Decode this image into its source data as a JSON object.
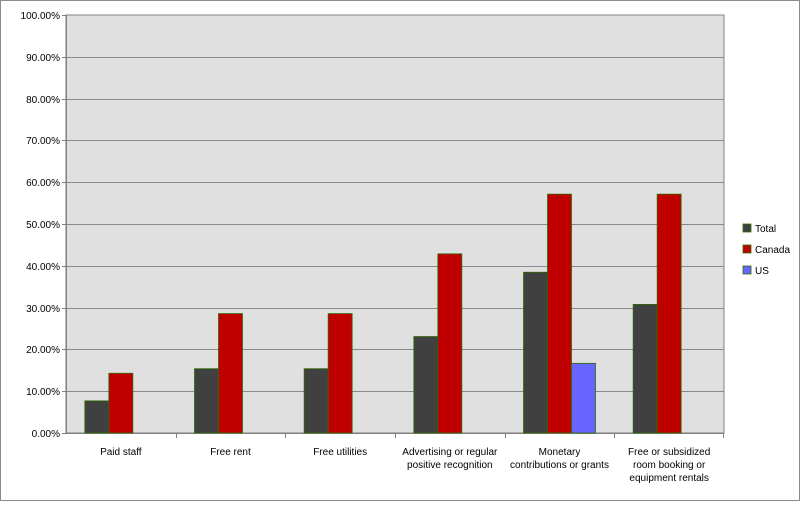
{
  "chart_data": {
    "type": "bar",
    "title": "",
    "xlabel": "",
    "ylabel": "",
    "categories": [
      [
        "Paid staff"
      ],
      [
        "Free rent"
      ],
      [
        "Free utilities"
      ],
      [
        "Advertising or regular",
        "positive recognition"
      ],
      [
        "Monetary",
        "contributions or grants"
      ],
      [
        "Free or subsidized",
        "room booking or",
        "equipment rentals"
      ]
    ],
    "series": [
      {
        "name": "Total",
        "color": "#404040",
        "values": [
          7.69,
          15.38,
          15.38,
          23.08,
          38.46,
          30.77
        ]
      },
      {
        "name": "Canada",
        "color": "#c00000",
        "values": [
          14.29,
          28.57,
          28.57,
          42.86,
          57.14,
          57.14
        ]
      },
      {
        "name": "US",
        "color": "#6666ff",
        "values": [
          0,
          0,
          0,
          0,
          16.67,
          0
        ]
      }
    ],
    "ylim": [
      0,
      100
    ],
    "yticks": [
      "0.00%",
      "10.00%",
      "20.00%",
      "30.00%",
      "40.00%",
      "50.00%",
      "60.00%",
      "70.00%",
      "80.00%",
      "90.00%",
      "100.00%"
    ],
    "grid": true,
    "legend_position": "right",
    "plot_background": "#e0e0e0"
  }
}
